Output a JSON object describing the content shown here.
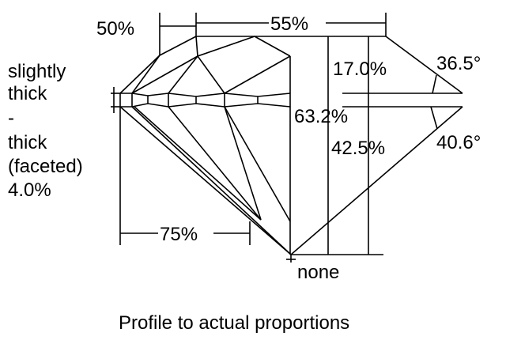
{
  "labels": {
    "table_width": "50%",
    "crown_width": "55%",
    "crown_height": "17.0%",
    "crown_angle": "36.5°",
    "total_depth": "63.2%",
    "pavilion_depth": "42.5%",
    "pavilion_angle": "40.6°",
    "lower_half": "75%",
    "culet": "none",
    "girdle_lines": [
      "slightly",
      "thick",
      "-",
      "thick",
      "(faceted)",
      "4.0%"
    ]
  },
  "caption": "Profile to actual proportions",
  "colors": {
    "line": "#000000",
    "background": "#ffffff"
  }
}
